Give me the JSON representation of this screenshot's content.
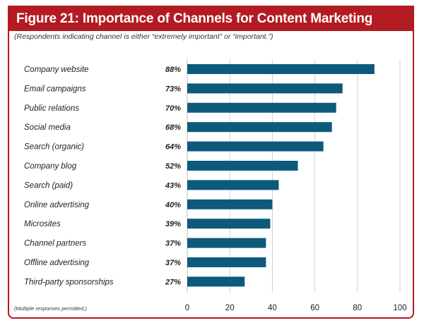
{
  "figure": {
    "title": "Figure 21:   Importance of Channels for Content Marketing",
    "subtitle": "(Respondents indicating channel is either “extremely important” or “important.”)",
    "footnote": "(Multiple responses permitted.)"
  },
  "colors": {
    "accent": "#b31b22",
    "bar": "#0d5a7a",
    "grid": "#c8c8c8"
  },
  "chart_data": {
    "type": "bar",
    "orientation": "horizontal",
    "title": "Importance of Channels for Content Marketing",
    "categories": [
      "Company website",
      "Email campaigns",
      "Public relations",
      "Social media",
      "Search (organic)",
      "Company blog",
      "Search (paid)",
      "Online advertising",
      "Microsites",
      "Channel partners",
      "Offline advertising",
      "Third-party sponsorships"
    ],
    "values": [
      88,
      73,
      70,
      68,
      64,
      52,
      43,
      40,
      39,
      37,
      37,
      27
    ],
    "value_labels": [
      "88%",
      "73%",
      "70%",
      "68%",
      "64%",
      "52%",
      "43%",
      "40%",
      "39%",
      "37%",
      "37%",
      "27%"
    ],
    "xlim": [
      0,
      100
    ],
    "xticks": [
      0,
      20,
      40,
      60,
      80,
      100
    ],
    "grid": true
  }
}
